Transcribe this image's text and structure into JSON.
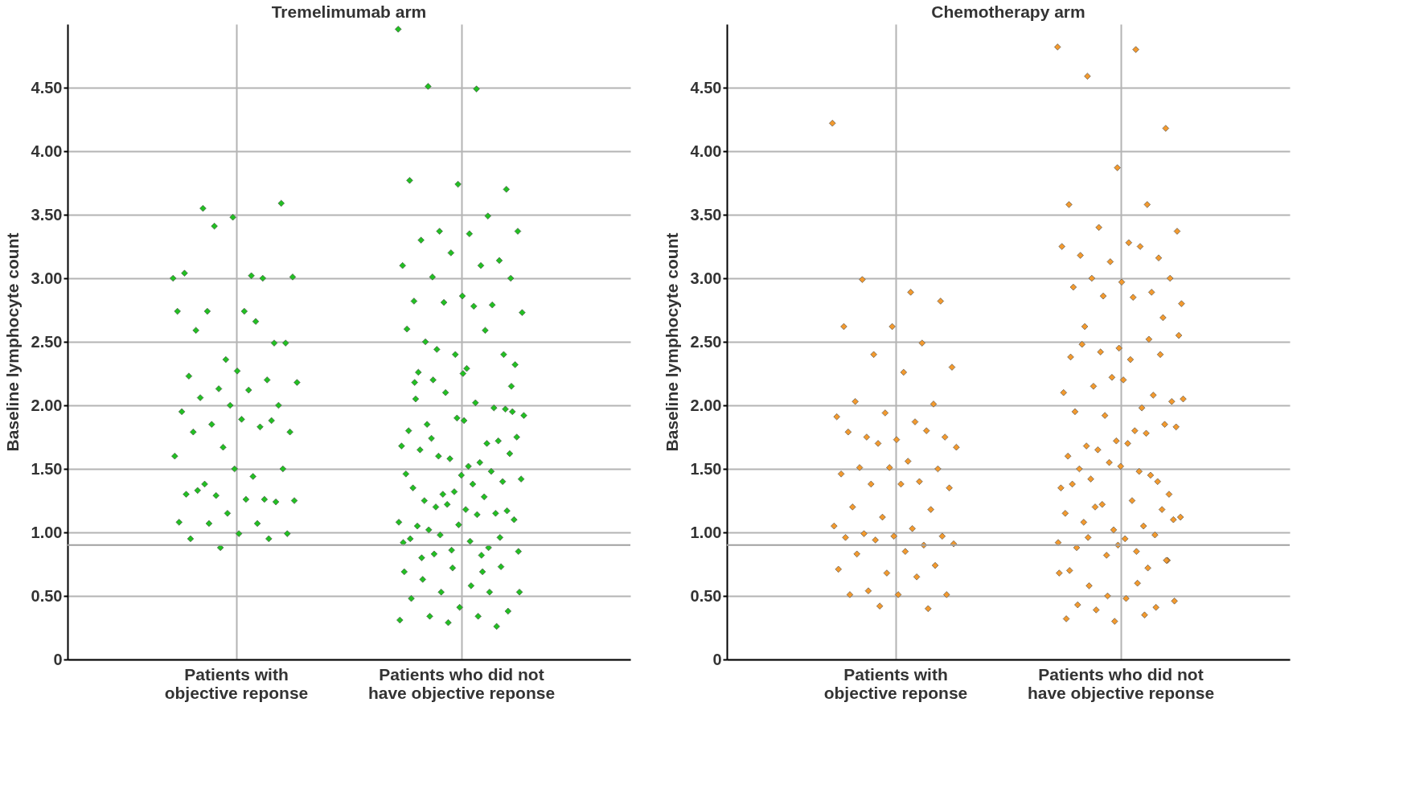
{
  "chart_data": [
    {
      "type": "scatter",
      "title": "Tremelimumab arm",
      "ylabel": "Baseline lymphocyte count",
      "marker": "diamond",
      "grid": true,
      "categories": [
        "Patients with objective reponse",
        "Patients who did not have objective reponse"
      ],
      "ylim": [
        0,
        5.0
      ],
      "yticks": [
        0,
        {
          "value": 0.5,
          "label": "0.50"
        },
        {
          "value": 1,
          "label": "1.00"
        },
        {
          "value": 1.5,
          "label": "1.50"
        },
        {
          "value": 2,
          "label": "2.00"
        },
        {
          "value": 2.5,
          "label": "2.50"
        },
        {
          "value": 3,
          "label": "3.00"
        },
        {
          "value": 3.5,
          "label": "3.50"
        },
        {
          "value": 4,
          "label": "4.00"
        },
        {
          "value": 4.5,
          "label": "4.50"
        }
      ],
      "ref_lines": [
        {
          "axis": "y",
          "value": 0.9,
          "color": "#a0a0a0"
        }
      ],
      "series": [
        {
          "color": "#22c022",
          "x": [
            "Patients with objective reponse",
            "Patients with objective reponse",
            "Patients with objective reponse",
            "Patients with objective reponse",
            "Patients with objective reponse",
            "Patients with objective reponse",
            "Patients with objective reponse",
            "Patients with objective reponse",
            "Patients with objective reponse",
            "Patients with objective reponse",
            "Patients with objective reponse",
            "Patients with objective reponse",
            "Patients with objective reponse",
            "Patients with objective reponse",
            "Patients with objective reponse",
            "Patients with objective reponse",
            "Patients with objective reponse",
            "Patients with objective reponse",
            "Patients with objective reponse",
            "Patients with objective reponse",
            "Patients with objective reponse",
            "Patients with objective reponse",
            "Patients with objective reponse",
            "Patients with objective reponse",
            "Patients with objective reponse",
            "Patients with objective reponse",
            "Patients with objective reponse",
            "Patients with objective reponse",
            "Patients with objective reponse",
            "Patients with objective reponse",
            "Patients with objective reponse",
            "Patients with objective reponse",
            "Patients with objective reponse",
            "Patients with objective reponse",
            "Patients with objective reponse",
            "Patients with objective reponse",
            "Patients with objective reponse",
            "Patients with objective reponse",
            "Patients with objective reponse",
            "Patients with objective reponse",
            "Patients with objective reponse",
            "Patients with objective reponse",
            "Patients with objective reponse",
            "Patients with objective reponse",
            "Patients with objective reponse",
            "Patients with objective reponse",
            "Patients with objective reponse",
            "Patients with objective reponse",
            "Patients with objective reponse",
            "Patients with objective reponse",
            "Patients with objective reponse",
            "Patients with objective reponse",
            "Patients with objective reponse",
            "Patients with objective reponse",
            "Patients with objective reponse"
          ],
          "values": [
            3.0,
            3.02,
            3.55,
            3.59,
            3.48,
            3.04,
            3.0,
            3.41,
            3.01,
            2.74,
            2.59,
            2.49,
            2.36,
            2.74,
            2.66,
            2.74,
            2.49,
            2.27,
            2.23,
            2.2,
            2.13,
            2.18,
            2.12,
            2.06,
            2.0,
            2.0,
            1.95,
            1.83,
            1.85,
            1.79,
            1.89,
            1.79,
            1.88,
            1.67,
            1.6,
            1.44,
            1.38,
            1.5,
            1.5,
            1.3,
            1.26,
            1.29,
            1.25,
            1.26,
            1.33,
            1.24,
            1.15,
            1.08,
            1.07,
            1.07,
            0.99,
            0.99,
            0.95,
            0.95,
            0.88
          ]
        },
        {
          "color": "#22c022",
          "x": [
            "Patients who did not have objective reponse",
            "Patients who did not have objective reponse",
            "Patients who did not have objective reponse",
            "Patients who did not have objective reponse",
            "Patients who did not have objective reponse",
            "Patients who did not have objective reponse",
            "Patients who did not have objective reponse",
            "Patients who did not have objective reponse",
            "Patients who did not have objective reponse",
            "Patients who did not have objective reponse",
            "Patients who did not have objective reponse",
            "Patients who did not have objective reponse",
            "Patients who did not have objective reponse",
            "Patients who did not have objective reponse",
            "Patients who did not have objective reponse",
            "Patients who did not have objective reponse",
            "Patients who did not have objective reponse",
            "Patients who did not have objective reponse",
            "Patients who did not have objective reponse",
            "Patients who did not have objective reponse",
            "Patients who did not have objective reponse",
            "Patients who did not have objective reponse",
            "Patients who did not have objective reponse",
            "Patients who did not have objective reponse",
            "Patients who did not have objective reponse",
            "Patients who did not have objective reponse",
            "Patients who did not have objective reponse",
            "Patients who did not have objective reponse",
            "Patients who did not have objective reponse",
            "Patients who did not have objective reponse",
            "Patients who did not have objective reponse",
            "Patients who did not have objective reponse",
            "Patients who did not have objective reponse",
            "Patients who did not have objective reponse",
            "Patients who did not have objective reponse",
            "Patients who did not have objective reponse",
            "Patients who did not have objective reponse",
            "Patients who did not have objective reponse",
            "Patients who did not have objective reponse",
            "Patients who did not have objective reponse",
            "Patients who did not have objective reponse",
            "Patients who did not have objective reponse",
            "Patients who did not have objective reponse",
            "Patients who did not have objective reponse",
            "Patients who did not have objective reponse",
            "Patients who did not have objective reponse",
            "Patients who did not have objective reponse",
            "Patients who did not have objective reponse",
            "Patients who did not have objective reponse",
            "Patients who did not have objective reponse",
            "Patients who did not have objective reponse",
            "Patients who did not have objective reponse",
            "Patients who did not have objective reponse",
            "Patients who did not have objective reponse",
            "Patients who did not have objective reponse",
            "Patients who did not have objective reponse",
            "Patients who did not have objective reponse",
            "Patients who did not have objective reponse",
            "Patients who did not have objective reponse",
            "Patients who did not have objective reponse",
            "Patients who did not have objective reponse",
            "Patients who did not have objective reponse",
            "Patients who did not have objective reponse",
            "Patients who did not have objective reponse",
            "Patients who did not have objective reponse",
            "Patients who did not have objective reponse",
            "Patients who did not have objective reponse",
            "Patients who did not have objective reponse",
            "Patients who did not have objective reponse",
            "Patients who did not have objective reponse",
            "Patients who did not have objective reponse",
            "Patients who did not have objective reponse",
            "Patients who did not have objective reponse",
            "Patients who did not have objective reponse",
            "Patients who did not have objective reponse",
            "Patients who did not have objective reponse",
            "Patients who did not have objective reponse",
            "Patients who did not have objective reponse",
            "Patients who did not have objective reponse",
            "Patients who did not have objective reponse",
            "Patients who did not have objective reponse",
            "Patients who did not have objective reponse",
            "Patients who did not have objective reponse",
            "Patients who did not have objective reponse",
            "Patients who did not have objective reponse",
            "Patients who did not have objective reponse",
            "Patients who did not have objective reponse",
            "Patients who did not have objective reponse",
            "Patients who did not have objective reponse",
            "Patients who did not have objective reponse",
            "Patients who did not have objective reponse",
            "Patients who did not have objective reponse",
            "Patients who did not have objective reponse",
            "Patients who did not have objective reponse",
            "Patients who did not have objective reponse",
            "Patients who did not have objective reponse",
            "Patients who did not have objective reponse",
            "Patients who did not have objective reponse",
            "Patients who did not have objective reponse",
            "Patients who did not have objective reponse",
            "Patients who did not have objective reponse",
            "Patients who did not have objective reponse",
            "Patients who did not have objective reponse",
            "Patients who did not have objective reponse",
            "Patients who did not have objective reponse",
            "Patients who did not have objective reponse",
            "Patients who did not have objective reponse",
            "Patients who did not have objective reponse"
          ],
          "values": [
            4.96,
            4.49,
            4.51,
            3.7,
            3.74,
            3.77,
            3.49,
            3.37,
            3.37,
            3.35,
            3.3,
            3.14,
            3.2,
            3.1,
            3.1,
            3.01,
            3.0,
            2.86,
            2.82,
            2.79,
            2.81,
            2.73,
            2.78,
            2.5,
            2.4,
            2.4,
            2.6,
            2.59,
            2.44,
            2.32,
            2.29,
            2.26,
            0.26,
            0.29,
            0.31,
            0.34,
            0.34,
            0.38,
            0.41,
            0.48,
            0.53,
            0.53,
            0.53,
            0.58,
            0.63,
            0.73,
            0.72,
            0.69,
            0.69,
            0.83,
            1.95,
            1.88,
            2.05,
            1.98,
            2.1,
            1.92,
            2.02,
            1.85,
            1.97,
            1.9,
            1.8,
            1.7,
            1.6,
            1.75,
            1.52,
            1.65,
            1.72,
            1.58,
            1.68,
            1.55,
            1.74,
            1.62,
            1.45,
            1.35,
            1.48,
            1.3,
            1.42,
            1.38,
            1.25,
            1.4,
            1.32,
            1.46,
            1.28,
            1.2,
            1.1,
            1.18,
            1.05,
            1.15,
            1.22,
            1.08,
            1.14,
            1.02,
            1.17,
            1.06,
            0.95,
            0.88,
            0.98,
            0.85,
            0.93,
            0.8,
            0.96,
            0.86,
            0.92,
            0.82,
            2.2,
            2.15,
            2.25,
            2.18
          ]
        }
      ]
    },
    {
      "type": "scatter",
      "title": "Chemotherapy arm",
      "ylabel": "Baseline lymphocyte count",
      "marker": "diamond",
      "grid": true,
      "categories": [
        "Patients with objective reponse",
        "Patients who did not have objective reponse"
      ],
      "ylim": [
        0,
        5.0
      ],
      "yticks": [
        0,
        {
          "value": 0.5,
          "label": "0.50"
        },
        {
          "value": 1,
          "label": "1.00"
        },
        {
          "value": 1.5,
          "label": "1.50"
        },
        {
          "value": 2,
          "label": "2.00"
        },
        {
          "value": 2.5,
          "label": "2.50"
        },
        {
          "value": 3,
          "label": "3.00"
        },
        {
          "value": 3.5,
          "label": "3.50"
        },
        {
          "value": 4,
          "label": "4.00"
        },
        {
          "value": 4.5,
          "label": "4.50"
        }
      ],
      "ref_lines": [
        {
          "axis": "y",
          "value": 0.9,
          "color": "#a0a0a0"
        }
      ],
      "series": [
        {
          "color": "#f39a2e",
          "x": [
            "Patients with objective reponse",
            "Patients with objective reponse",
            "Patients with objective reponse",
            "Patients with objective reponse",
            "Patients with objective reponse",
            "Patients with objective reponse",
            "Patients with objective reponse",
            "Patients with objective reponse",
            "Patients with objective reponse",
            "Patients with objective reponse",
            "Patients with objective reponse",
            "Patients with objective reponse",
            "Patients with objective reponse",
            "Patients with objective reponse",
            "Patients with objective reponse",
            "Patients with objective reponse",
            "Patients with objective reponse",
            "Patients with objective reponse",
            "Patients with objective reponse",
            "Patients with objective reponse",
            "Patients with objective reponse",
            "Patients with objective reponse",
            "Patients with objective reponse",
            "Patients with objective reponse",
            "Patients with objective reponse",
            "Patients with objective reponse",
            "Patients with objective reponse",
            "Patients with objective reponse",
            "Patients with objective reponse",
            "Patients with objective reponse",
            "Patients with objective reponse",
            "Patients with objective reponse",
            "Patients with objective reponse",
            "Patients with objective reponse",
            "Patients with objective reponse",
            "Patients with objective reponse",
            "Patients with objective reponse",
            "Patients with objective reponse",
            "Patients with objective reponse",
            "Patients with objective reponse",
            "Patients with objective reponse",
            "Patients with objective reponse",
            "Patients with objective reponse",
            "Patients with objective reponse",
            "Patients with objective reponse",
            "Patients with objective reponse",
            "Patients with objective reponse",
            "Patients with objective reponse",
            "Patients with objective reponse",
            "Patients with objective reponse",
            "Patients with objective reponse",
            "Patients with objective reponse",
            "Patients with objective reponse",
            "Patients with objective reponse",
            "Patients with objective reponse"
          ],
          "values": [
            4.22,
            2.89,
            2.99,
            2.82,
            2.62,
            2.62,
            2.49,
            2.4,
            2.3,
            2.26,
            2.03,
            2.01,
            1.94,
            1.91,
            1.87,
            1.75,
            1.75,
            1.73,
            1.79,
            1.8,
            1.7,
            1.67,
            1.56,
            1.51,
            1.5,
            1.51,
            1.46,
            1.4,
            1.38,
            1.35,
            1.38,
            1.2,
            1.18,
            1.12,
            1.05,
            1.03,
            0.99,
            0.97,
            0.97,
            0.96,
            0.9,
            0.94,
            0.91,
            0.85,
            0.83,
            0.74,
            0.68,
            0.71,
            0.65,
            0.54,
            0.51,
            0.51,
            0.51,
            0.4,
            0.42
          ]
        },
        {
          "color": "#f39a2e",
          "x": [
            "Patients who did not have objective reponse",
            "Patients who did not have objective reponse",
            "Patients who did not have objective reponse",
            "Patients who did not have objective reponse",
            "Patients who did not have objective reponse",
            "Patients who did not have objective reponse",
            "Patients who did not have objective reponse",
            "Patients who did not have objective reponse",
            "Patients who did not have objective reponse",
            "Patients who did not have objective reponse",
            "Patients who did not have objective reponse",
            "Patients who did not have objective reponse",
            "Patients who did not have objective reponse",
            "Patients who did not have objective reponse",
            "Patients who did not have objective reponse",
            "Patients who did not have objective reponse",
            "Patients who did not have objective reponse",
            "Patients who did not have objective reponse",
            "Patients who did not have objective reponse",
            "Patients who did not have objective reponse",
            "Patients who did not have objective reponse",
            "Patients who did not have objective reponse",
            "Patients who did not have objective reponse",
            "Patients who did not have objective reponse",
            "Patients who did not have objective reponse",
            "Patients who did not have objective reponse",
            "Patients who did not have objective reponse",
            "Patients who did not have objective reponse",
            "Patients who did not have objective reponse",
            "Patients who did not have objective reponse",
            "Patients who did not have objective reponse",
            "Patients who did not have objective reponse",
            "Patients who did not have objective reponse",
            "Patients who did not have objective reponse",
            "Patients who did not have objective reponse",
            "Patients who did not have objective reponse",
            "Patients who did not have objective reponse",
            "Patients who did not have objective reponse",
            "Patients who did not have objective reponse",
            "Patients who did not have objective reponse",
            "Patients who did not have objective reponse",
            "Patients who did not have objective reponse",
            "Patients who did not have objective reponse",
            "Patients who did not have objective reponse",
            "Patients who did not have objective reponse",
            "Patients who did not have objective reponse",
            "Patients who did not have objective reponse",
            "Patients who did not have objective reponse",
            "Patients who did not have objective reponse",
            "Patients who did not have objective reponse",
            "Patients who did not have objective reponse",
            "Patients who did not have objective reponse",
            "Patients who did not have objective reponse",
            "Patients who did not have objective reponse",
            "Patients who did not have objective reponse",
            "Patients who did not have objective reponse",
            "Patients who did not have objective reponse",
            "Patients who did not have objective reponse",
            "Patients who did not have objective reponse",
            "Patients who did not have objective reponse",
            "Patients who did not have objective reponse",
            "Patients who did not have objective reponse",
            "Patients who did not have objective reponse",
            "Patients who did not have objective reponse",
            "Patients who did not have objective reponse",
            "Patients who did not have objective reponse",
            "Patients who did not have objective reponse",
            "Patients who did not have objective reponse",
            "Patients who did not have objective reponse",
            "Patients who did not have objective reponse",
            "Patients who did not have objective reponse",
            "Patients who did not have objective reponse",
            "Patients who did not have objective reponse",
            "Patients who did not have objective reponse",
            "Patients who did not have objective reponse",
            "Patients who did not have objective reponse",
            "Patients who did not have objective reponse",
            "Patients who did not have objective reponse",
            "Patients who did not have objective reponse",
            "Patients who did not have objective reponse",
            "Patients who did not have objective reponse",
            "Patients who did not have objective reponse",
            "Patients who did not have objective reponse",
            "Patients who did not have objective reponse",
            "Patients who did not have objective reponse",
            "Patients who did not have objective reponse",
            "Patients who did not have objective reponse",
            "Patients who did not have objective reponse",
            "Patients who did not have objective reponse",
            "Patients who did not have objective reponse",
            "Patients who did not have objective reponse",
            "Patients who did not have objective reponse",
            "Patients who did not have objective reponse",
            "Patients who did not have objective reponse",
            "Patients who did not have objective reponse",
            "Patients who did not have objective reponse"
          ],
          "values": [
            4.82,
            4.8,
            4.59,
            4.18,
            3.87,
            3.58,
            3.58,
            3.4,
            3.37,
            3.28,
            3.18,
            3.16,
            3.13,
            3.25,
            3.25,
            3.0,
            3.0,
            2.97,
            2.93,
            2.89,
            2.86,
            2.8,
            2.85,
            2.62,
            2.69,
            0.3,
            0.32,
            0.35,
            0.39,
            0.46,
            0.48,
            0.43,
            0.41,
            0.5,
            0.68,
            0.6,
            0.58,
            0.78,
            2.45,
            2.38,
            2.52,
            2.42,
            2.55,
            2.36,
            2.48,
            2.4,
            2.22,
            2.1,
            1.98,
            2.15,
            2.03,
            2.2,
            1.95,
            2.08,
            1.92,
            2.05,
            1.8,
            1.68,
            1.85,
            1.72,
            1.6,
            1.78,
            1.65,
            1.83,
            1.7,
            1.5,
            1.4,
            1.55,
            1.35,
            1.48,
            1.42,
            1.3,
            1.52,
            1.38,
            1.45,
            1.22,
            1.12,
            1.25,
            1.08,
            1.18,
            1.02,
            1.15,
            1.05,
            1.2,
            1.1,
            0.95,
            0.88,
            0.98,
            0.82,
            0.92,
            0.85,
            0.96,
            0.78,
            0.9,
            0.7,
            0.72
          ]
        }
      ]
    }
  ]
}
